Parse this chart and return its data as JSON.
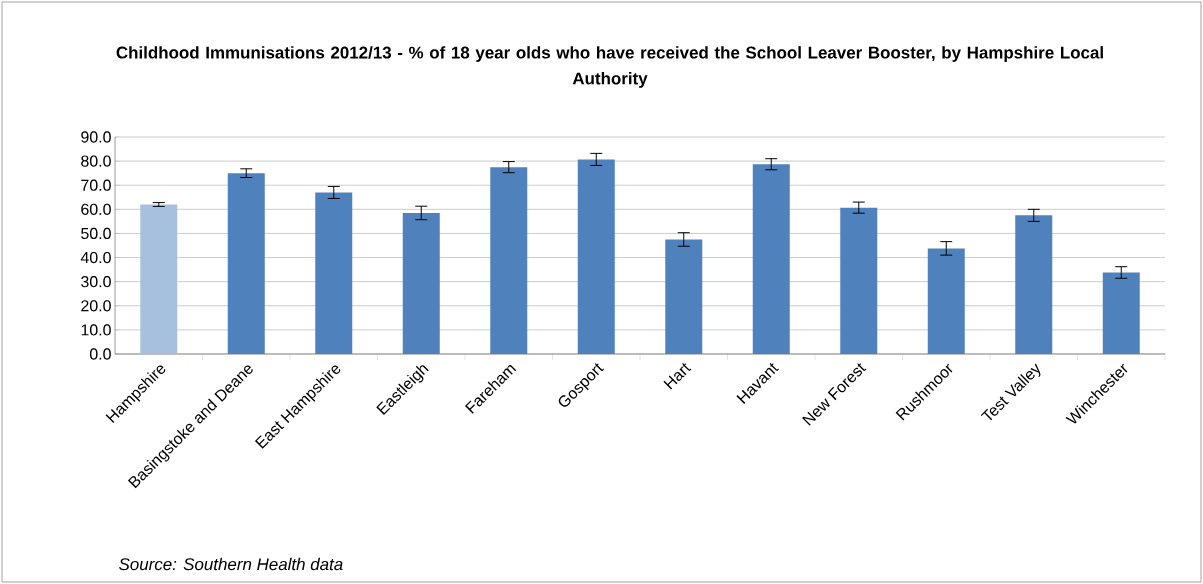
{
  "chart_data": {
    "type": "bar",
    "title": "Childhood Immunisations 2012/13 - % of 18 year olds who have received the School Leaver Booster, by Hampshire Local Authority",
    "categories": [
      "Hampshire",
      "Basingstoke and Deane",
      "East Hampshire",
      "Eastleigh",
      "Fareham",
      "Gosport",
      "Hart",
      "Havant",
      "New Forest",
      "Rushmoor",
      "Test Valley",
      "Winchester"
    ],
    "values": [
      62.0,
      75.0,
      67.0,
      58.5,
      77.5,
      80.7,
      47.5,
      78.7,
      60.7,
      43.8,
      57.5,
      33.8
    ],
    "errors": [
      0.8,
      1.8,
      2.5,
      2.8,
      2.3,
      2.5,
      2.8,
      2.3,
      2.3,
      2.8,
      2.5,
      2.4
    ],
    "colors": [
      "#a7c0de",
      "#4f81bd",
      "#4f81bd",
      "#4f81bd",
      "#4f81bd",
      "#4f81bd",
      "#4f81bd",
      "#4f81bd",
      "#4f81bd",
      "#4f81bd",
      "#4f81bd",
      "#4f81bd"
    ],
    "ylim": [
      0,
      90
    ],
    "yticks": [
      {
        "value": 0,
        "label": "0.0"
      },
      {
        "value": 10,
        "label": "10.0"
      },
      {
        "value": 20,
        "label": "20.0"
      },
      {
        "value": 30,
        "label": "30.0"
      },
      {
        "value": 40,
        "label": "40.0"
      },
      {
        "value": 50,
        "label": "50.0"
      },
      {
        "value": 60,
        "label": "60.0"
      },
      {
        "value": 70,
        "label": "70.0"
      },
      {
        "value": 80,
        "label": "80.0"
      },
      {
        "value": 90,
        "label": "90.0"
      }
    ],
    "grid": "y",
    "annotations": [
      "Source: Southern Health data"
    ]
  }
}
